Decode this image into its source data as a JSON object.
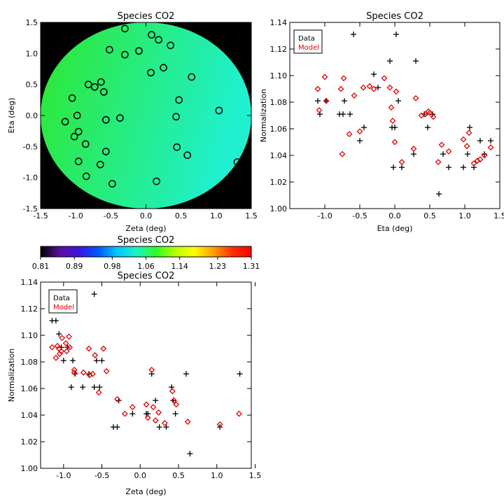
{
  "chart_data": [
    {
      "type": "scatter",
      "title": "Species CO2",
      "xlabel": "Zeta (deg)",
      "ylabel": "Eta (deg)",
      "xlim": [
        -1.5,
        1.5
      ],
      "ylim": [
        -1.5,
        1.5
      ],
      "xticks": [
        "-1.5",
        "-1.0",
        "-0.5",
        "0.0",
        "0.5",
        "1.0",
        "1.5"
      ],
      "yticks": [
        "-1.5",
        "-1.0",
        "-0.5",
        "0.0",
        "0.5",
        "1.0",
        "1.5"
      ],
      "background_map": {
        "field_color_left": "#2ee82e",
        "field_color_right": "#1ff0d0",
        "outside_color": "#000000",
        "disk_radius_deg": 1.5
      },
      "marker": "open-circle",
      "points": [
        {
          "x": -0.3,
          "y": 1.4
        },
        {
          "x": 0.08,
          "y": 1.3
        },
        {
          "x": 0.18,
          "y": 1.22
        },
        {
          "x": -0.52,
          "y": 1.06
        },
        {
          "x": -0.3,
          "y": 0.98
        },
        {
          "x": -0.1,
          "y": 1.04
        },
        {
          "x": 0.35,
          "y": 1.13
        },
        {
          "x": 0.25,
          "y": 0.77
        },
        {
          "x": 0.07,
          "y": 0.69
        },
        {
          "x": 0.65,
          "y": 0.62
        },
        {
          "x": -0.82,
          "y": 0.5
        },
        {
          "x": -0.73,
          "y": 0.46
        },
        {
          "x": -0.64,
          "y": 0.54
        },
        {
          "x": -0.6,
          "y": 0.38
        },
        {
          "x": -1.05,
          "y": 0.28
        },
        {
          "x": 0.47,
          "y": 0.25
        },
        {
          "x": -0.98,
          "y": 0.0
        },
        {
          "x": 1.04,
          "y": 0.08
        },
        {
          "x": -0.57,
          "y": -0.07
        },
        {
          "x": -0.37,
          "y": -0.04
        },
        {
          "x": 0.43,
          "y": -0.02
        },
        {
          "x": -1.15,
          "y": -0.1
        },
        {
          "x": -0.96,
          "y": -0.26
        },
        {
          "x": -1.02,
          "y": -0.34
        },
        {
          "x": -0.86,
          "y": -0.46
        },
        {
          "x": 0.44,
          "y": -0.51
        },
        {
          "x": -0.57,
          "y": -0.58
        },
        {
          "x": 0.59,
          "y": -0.64
        },
        {
          "x": -0.96,
          "y": -0.74
        },
        {
          "x": -0.65,
          "y": -0.79
        },
        {
          "x": 1.3,
          "y": -0.75
        },
        {
          "x": -0.85,
          "y": -0.98
        },
        {
          "x": -0.48,
          "y": -1.1
        },
        {
          "x": 0.15,
          "y": -1.06
        }
      ]
    },
    {
      "type": "scatter",
      "title": "Species CO2",
      "xlabel": "Eta (deg)",
      "ylabel": "Normalization",
      "xlim": [
        -1.5,
        1.5
      ],
      "ylim": [
        1.0,
        1.14
      ],
      "xticks": [
        "-1.0",
        "-0.5",
        "0.0",
        "0.5",
        "1.0",
        "1.5"
      ],
      "yticks": [
        "1.00",
        "1.02",
        "1.04",
        "1.06",
        "1.08",
        "1.10",
        "1.12",
        "1.14"
      ],
      "legend_position": "top-left",
      "series": [
        {
          "name": "Data",
          "marker": "plus",
          "color": "#000000",
          "points": [
            [
              -1.1,
              1.081
            ],
            [
              -1.07,
              1.071
            ],
            [
              -0.98,
              1.081
            ],
            [
              -0.79,
              1.071
            ],
            [
              -0.74,
              1.071
            ],
            [
              -0.72,
              1.081
            ],
            [
              -0.64,
              1.071
            ],
            [
              -0.59,
              1.131
            ],
            [
              -0.5,
              1.051
            ],
            [
              -0.44,
              1.061
            ],
            [
              -0.3,
              1.101
            ],
            [
              -0.24,
              1.091
            ],
            [
              -0.07,
              1.111
            ],
            [
              -0.04,
              1.061
            ],
            [
              -0.02,
              1.031
            ],
            [
              0.0,
              1.061
            ],
            [
              0.02,
              1.131
            ],
            [
              0.05,
              1.081
            ],
            [
              0.1,
              1.031
            ],
            [
              0.27,
              1.041
            ],
            [
              0.3,
              1.111
            ],
            [
              0.42,
              1.071
            ],
            [
              0.47,
              1.061
            ],
            [
              0.54,
              1.071
            ],
            [
              0.63,
              1.011
            ],
            [
              0.69,
              1.041
            ],
            [
              0.77,
              1.031
            ],
            [
              0.98,
              1.031
            ],
            [
              1.04,
              1.041
            ],
            [
              1.07,
              1.061
            ],
            [
              1.13,
              1.031
            ],
            [
              1.22,
              1.051
            ],
            [
              1.28,
              1.041
            ],
            [
              1.37,
              1.051
            ]
          ]
        },
        {
          "name": "Model",
          "marker": "diamond",
          "color": "#e00000",
          "points": [
            [
              -1.1,
              1.09
            ],
            [
              -1.08,
              1.074
            ],
            [
              -1.0,
              1.099
            ],
            [
              -0.98,
              1.081
            ],
            [
              -0.77,
              1.09
            ],
            [
              -0.75,
              1.041
            ],
            [
              -0.73,
              1.098
            ],
            [
              -0.65,
              1.056
            ],
            [
              -0.58,
              1.085
            ],
            [
              -0.5,
              1.058
            ],
            [
              -0.45,
              1.091
            ],
            [
              -0.36,
              1.092
            ],
            [
              -0.3,
              1.09
            ],
            [
              -0.15,
              1.098
            ],
            [
              -0.07,
              1.091
            ],
            [
              -0.05,
              1.076
            ],
            [
              -0.03,
              1.066
            ],
            [
              0.0,
              1.05
            ],
            [
              0.02,
              1.088
            ],
            [
              0.1,
              1.035
            ],
            [
              0.27,
              1.045
            ],
            [
              0.3,
              1.083
            ],
            [
              0.38,
              1.07
            ],
            [
              0.44,
              1.071
            ],
            [
              0.48,
              1.073
            ],
            [
              0.5,
              1.072
            ],
            [
              0.55,
              1.069
            ],
            [
              0.62,
              1.035
            ],
            [
              0.67,
              1.048
            ],
            [
              0.77,
              1.043
            ],
            [
              0.98,
              1.052
            ],
            [
              1.03,
              1.047
            ],
            [
              1.06,
              1.057
            ],
            [
              1.13,
              1.034
            ],
            [
              1.18,
              1.036
            ],
            [
              1.22,
              1.037
            ],
            [
              1.28,
              1.04
            ],
            [
              1.37,
              1.046
            ]
          ]
        }
      ]
    },
    {
      "type": "colorbar",
      "title": "Species CO2",
      "ticks": [
        "0.81",
        "0.89",
        "0.98",
        "1.06",
        "1.14",
        "1.23",
        "1.31"
      ],
      "range": [
        0.81,
        1.31
      ],
      "colors": [
        "#000000",
        "#5a0fa0",
        "#3c14dc",
        "#0055ff",
        "#00c8ff",
        "#20f0c8",
        "#28ff28",
        "#b4ff00",
        "#ffff00",
        "#ffa000",
        "#ff3000",
        "#ff0000"
      ]
    },
    {
      "type": "scatter",
      "title": "Species CO2",
      "xlabel": "Zeta (deg)",
      "ylabel": "Normalization",
      "xlim": [
        -1.3,
        1.45
      ],
      "ylim": [
        1.0,
        1.14
      ],
      "xticks": [
        "-1.0",
        "-0.5",
        "0.0",
        "0.5",
        "1.0",
        "1.5"
      ],
      "yticks": [
        "1.00",
        "1.02",
        "1.04",
        "1.06",
        "1.08",
        "1.10",
        "1.12",
        "1.14"
      ],
      "legend_position": "top-left",
      "series": [
        {
          "name": "Data",
          "marker": "plus",
          "color": "#000000",
          "points": [
            [
              -1.15,
              1.111
            ],
            [
              -1.1,
              1.111
            ],
            [
              -1.06,
              1.101
            ],
            [
              -1.03,
              1.091
            ],
            [
              -1.0,
              1.081
            ],
            [
              -0.95,
              1.091
            ],
            [
              -0.9,
              1.061
            ],
            [
              -0.88,
              1.081
            ],
            [
              -0.85,
              1.071
            ],
            [
              -0.75,
              1.061
            ],
            [
              -0.67,
              1.071
            ],
            [
              -0.6,
              1.131
            ],
            [
              -0.6,
              1.061
            ],
            [
              -0.57,
              1.081
            ],
            [
              -0.53,
              1.061
            ],
            [
              -0.5,
              1.081
            ],
            [
              -0.35,
              1.031
            ],
            [
              -0.3,
              1.031
            ],
            [
              -0.28,
              1.051
            ],
            [
              -0.1,
              1.041
            ],
            [
              0.08,
              1.041
            ],
            [
              0.1,
              1.041
            ],
            [
              0.15,
              1.071
            ],
            [
              0.2,
              1.051
            ],
            [
              0.25,
              1.031
            ],
            [
              0.34,
              1.031
            ],
            [
              0.41,
              1.061
            ],
            [
              0.43,
              1.051
            ],
            [
              0.46,
              1.041
            ],
            [
              0.6,
              1.071
            ],
            [
              0.65,
              1.011
            ],
            [
              1.04,
              1.031
            ],
            [
              1.3,
              1.071
            ]
          ]
        },
        {
          "name": "Model",
          "marker": "diamond",
          "color": "#e00000",
          "points": [
            [
              -1.15,
              1.091
            ],
            [
              -1.1,
              1.083
            ],
            [
              -1.08,
              1.092
            ],
            [
              -1.06,
              1.09
            ],
            [
              -1.05,
              1.086
            ],
            [
              -1.03,
              1.088
            ],
            [
              -1.02,
              1.098
            ],
            [
              -0.97,
              1.094
            ],
            [
              -0.96,
              1.088
            ],
            [
              -0.93,
              1.099
            ],
            [
              -0.92,
              1.091
            ],
            [
              -0.86,
              1.074
            ],
            [
              -0.86,
              1.072
            ],
            [
              -0.74,
              1.072
            ],
            [
              -0.67,
              1.09
            ],
            [
              -0.66,
              1.07
            ],
            [
              -0.62,
              1.071
            ],
            [
              -0.59,
              1.085
            ],
            [
              -0.54,
              1.057
            ],
            [
              -0.48,
              1.09
            ],
            [
              -0.44,
              1.073
            ],
            [
              -0.3,
              1.052
            ],
            [
              -0.2,
              1.041
            ],
            [
              -0.1,
              1.046
            ],
            [
              0.08,
              1.048
            ],
            [
              0.1,
              1.038
            ],
            [
              0.15,
              1.074
            ],
            [
              0.17,
              1.046
            ],
            [
              0.2,
              1.036
            ],
            [
              0.24,
              1.042
            ],
            [
              0.32,
              1.034
            ],
            [
              0.42,
              1.058
            ],
            [
              0.44,
              1.051
            ],
            [
              0.47,
              1.048
            ],
            [
              0.62,
              1.035
            ],
            [
              1.04,
              1.033
            ],
            [
              1.29,
              1.041
            ]
          ]
        }
      ]
    }
  ]
}
